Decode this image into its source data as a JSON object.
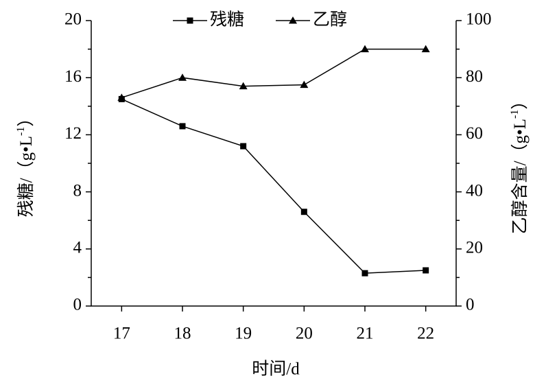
{
  "chart_data": {
    "type": "line",
    "xlabel": "时间/d",
    "ylabel": {
      "text": "残糖/（g•L",
      "sup": "-1",
      "end": "）"
    },
    "y2label": {
      "text": "乙醇含量/（g•L",
      "sup": "-1",
      "end": "）"
    },
    "x": [
      17,
      18,
      19,
      20,
      21,
      22
    ],
    "xlim": [
      16.5,
      22.5
    ],
    "xticks": [
      17,
      18,
      19,
      20,
      21,
      22
    ],
    "ylim": [
      0,
      20
    ],
    "yticks": [
      0,
      4,
      8,
      12,
      16,
      20
    ],
    "y2lim": [
      0,
      100
    ],
    "y2ticks": [
      0,
      20,
      40,
      60,
      80,
      100
    ],
    "series": [
      {
        "name": "残糖",
        "color": "#000000",
        "marker": "square",
        "values": [
          14.5,
          12.6,
          11.2,
          6.6,
          2.3,
          2.5
        ]
      },
      {
        "name": "乙醇",
        "color": "#000000",
        "marker": "triangle",
        "axis": "y2",
        "values": [
          73,
          80,
          77,
          77.5,
          90,
          90
        ]
      }
    ]
  }
}
